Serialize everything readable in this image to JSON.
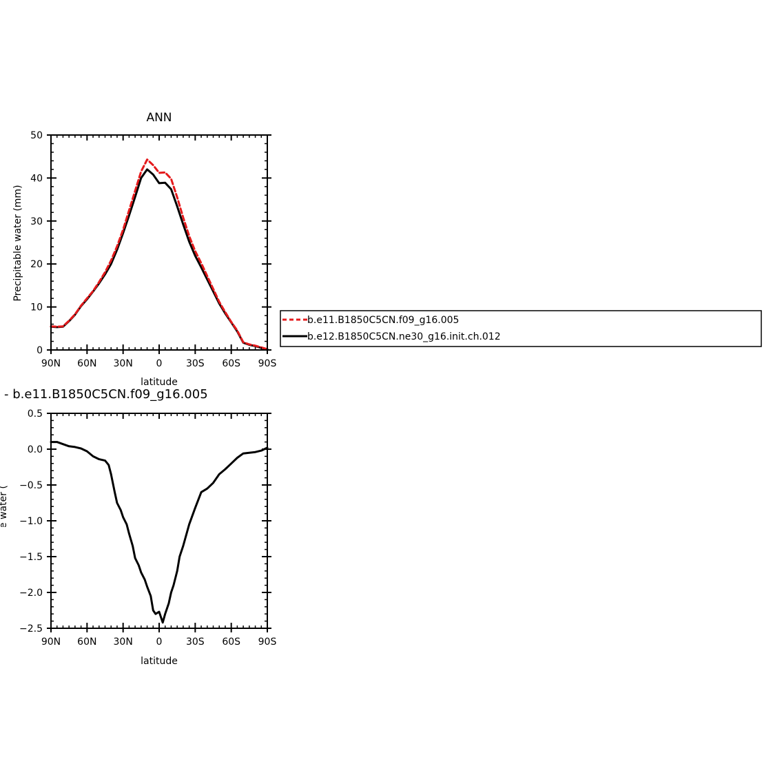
{
  "chart_data": [
    {
      "type": "line",
      "title": "ANN",
      "xlabel": "latitude",
      "ylabel": "Precipitable water (mm)",
      "x_ticks": [
        "90N",
        "60N",
        "30N",
        "0",
        "30S",
        "60S",
        "90S"
      ],
      "y_ticks": [
        "0",
        "10",
        "20",
        "30",
        "40",
        "50"
      ],
      "xlim": [
        90,
        -90
      ],
      "ylim": [
        0,
        50
      ],
      "grid": false,
      "legend": "right",
      "series": [
        {
          "name": "b.e11.B1850C5CN.f09_g16.005",
          "color": "#e41a1c",
          "dash": "dashed",
          "x": [
            90,
            85,
            80,
            75,
            70,
            65,
            60,
            55,
            50,
            45,
            40,
            35,
            30,
            25,
            20,
            15,
            10,
            5,
            0,
            -5,
            -10,
            -15,
            -20,
            -25,
            -30,
            -35,
            -40,
            -45,
            -50,
            -55,
            -60,
            -65,
            -70,
            -75,
            -80,
            -85,
            -90
          ],
          "values": [
            5.5,
            5.4,
            5.5,
            6.8,
            8.3,
            10.3,
            12.0,
            13.7,
            15.8,
            18.1,
            20.8,
            24.1,
            28.0,
            32.5,
            37.0,
            41.5,
            44.3,
            43.0,
            41.2,
            41.3,
            39.8,
            35.5,
            30.8,
            26.5,
            23.0,
            20.2,
            17.2,
            14.2,
            11.2,
            8.8,
            6.5,
            4.5,
            1.8,
            1.3,
            1.0,
            0.6,
            0.2
          ]
        },
        {
          "name": "b.e12.B1850C5CN.ne30_g16.init.ch.012",
          "color": "#000000",
          "dash": "solid",
          "x": [
            90,
            85,
            80,
            75,
            70,
            65,
            60,
            55,
            50,
            45,
            40,
            35,
            30,
            25,
            20,
            15,
            10,
            5,
            0,
            -5,
            -10,
            -15,
            -20,
            -25,
            -30,
            -35,
            -40,
            -45,
            -50,
            -55,
            -60,
            -65,
            -70,
            -75,
            -80,
            -85,
            -90
          ],
          "values": [
            5.4,
            5.3,
            5.4,
            6.7,
            8.2,
            10.2,
            11.8,
            13.6,
            15.5,
            17.6,
            20.0,
            23.3,
            27.2,
            31.3,
            35.6,
            40.0,
            42.0,
            40.8,
            38.8,
            38.9,
            37.4,
            33.4,
            29.2,
            25.2,
            21.9,
            19.2,
            16.4,
            13.6,
            10.8,
            8.5,
            6.4,
            4.3,
            1.7,
            1.2,
            0.9,
            0.5,
            0.2
          ]
        }
      ]
    },
    {
      "type": "line",
      "title": "- b.e11.B1850C5CN.f09_g16.005",
      "xlabel": "latitude",
      "ylabel": "Precipitable water (mm)",
      "x_ticks": [
        "90N",
        "60N",
        "30N",
        "0",
        "30S",
        "60S",
        "90S"
      ],
      "y_ticks": [
        "0.5",
        "0.0",
        "−0.5",
        "−1.0",
        "−1.5",
        "−2.0",
        "−2.5"
      ],
      "xlim": [
        90,
        -90
      ],
      "ylim": [
        -2.5,
        0.5
      ],
      "grid": false,
      "series": [
        {
          "color": "#000000",
          "x": [
            90,
            85,
            80,
            75,
            70,
            65,
            60,
            55,
            50,
            45,
            42,
            40,
            37,
            35,
            32,
            30,
            27,
            25,
            22,
            20,
            17,
            15,
            12,
            10,
            7,
            5,
            3,
            0,
            -3,
            -5,
            -8,
            -10,
            -12,
            -15,
            -17,
            -20,
            -25,
            -30,
            -35,
            -40,
            -45,
            -50,
            -55,
            -60,
            -65,
            -70,
            -75,
            -80,
            -85,
            -90
          ],
          "values": [
            0.1,
            0.1,
            0.07,
            0.04,
            0.03,
            0.01,
            -0.03,
            -0.1,
            -0.14,
            -0.16,
            -0.22,
            -0.35,
            -0.6,
            -0.75,
            -0.85,
            -0.95,
            -1.05,
            -1.18,
            -1.35,
            -1.52,
            -1.62,
            -1.72,
            -1.82,
            -1.92,
            -2.05,
            -2.25,
            -2.3,
            -2.27,
            -2.42,
            -2.3,
            -2.15,
            -2.0,
            -1.9,
            -1.7,
            -1.5,
            -1.35,
            -1.05,
            -0.82,
            -0.6,
            -0.55,
            -0.47,
            -0.35,
            -0.28,
            -0.2,
            -0.12,
            -0.06,
            -0.05,
            -0.04,
            -0.02,
            0.02
          ]
        }
      ]
    }
  ]
}
